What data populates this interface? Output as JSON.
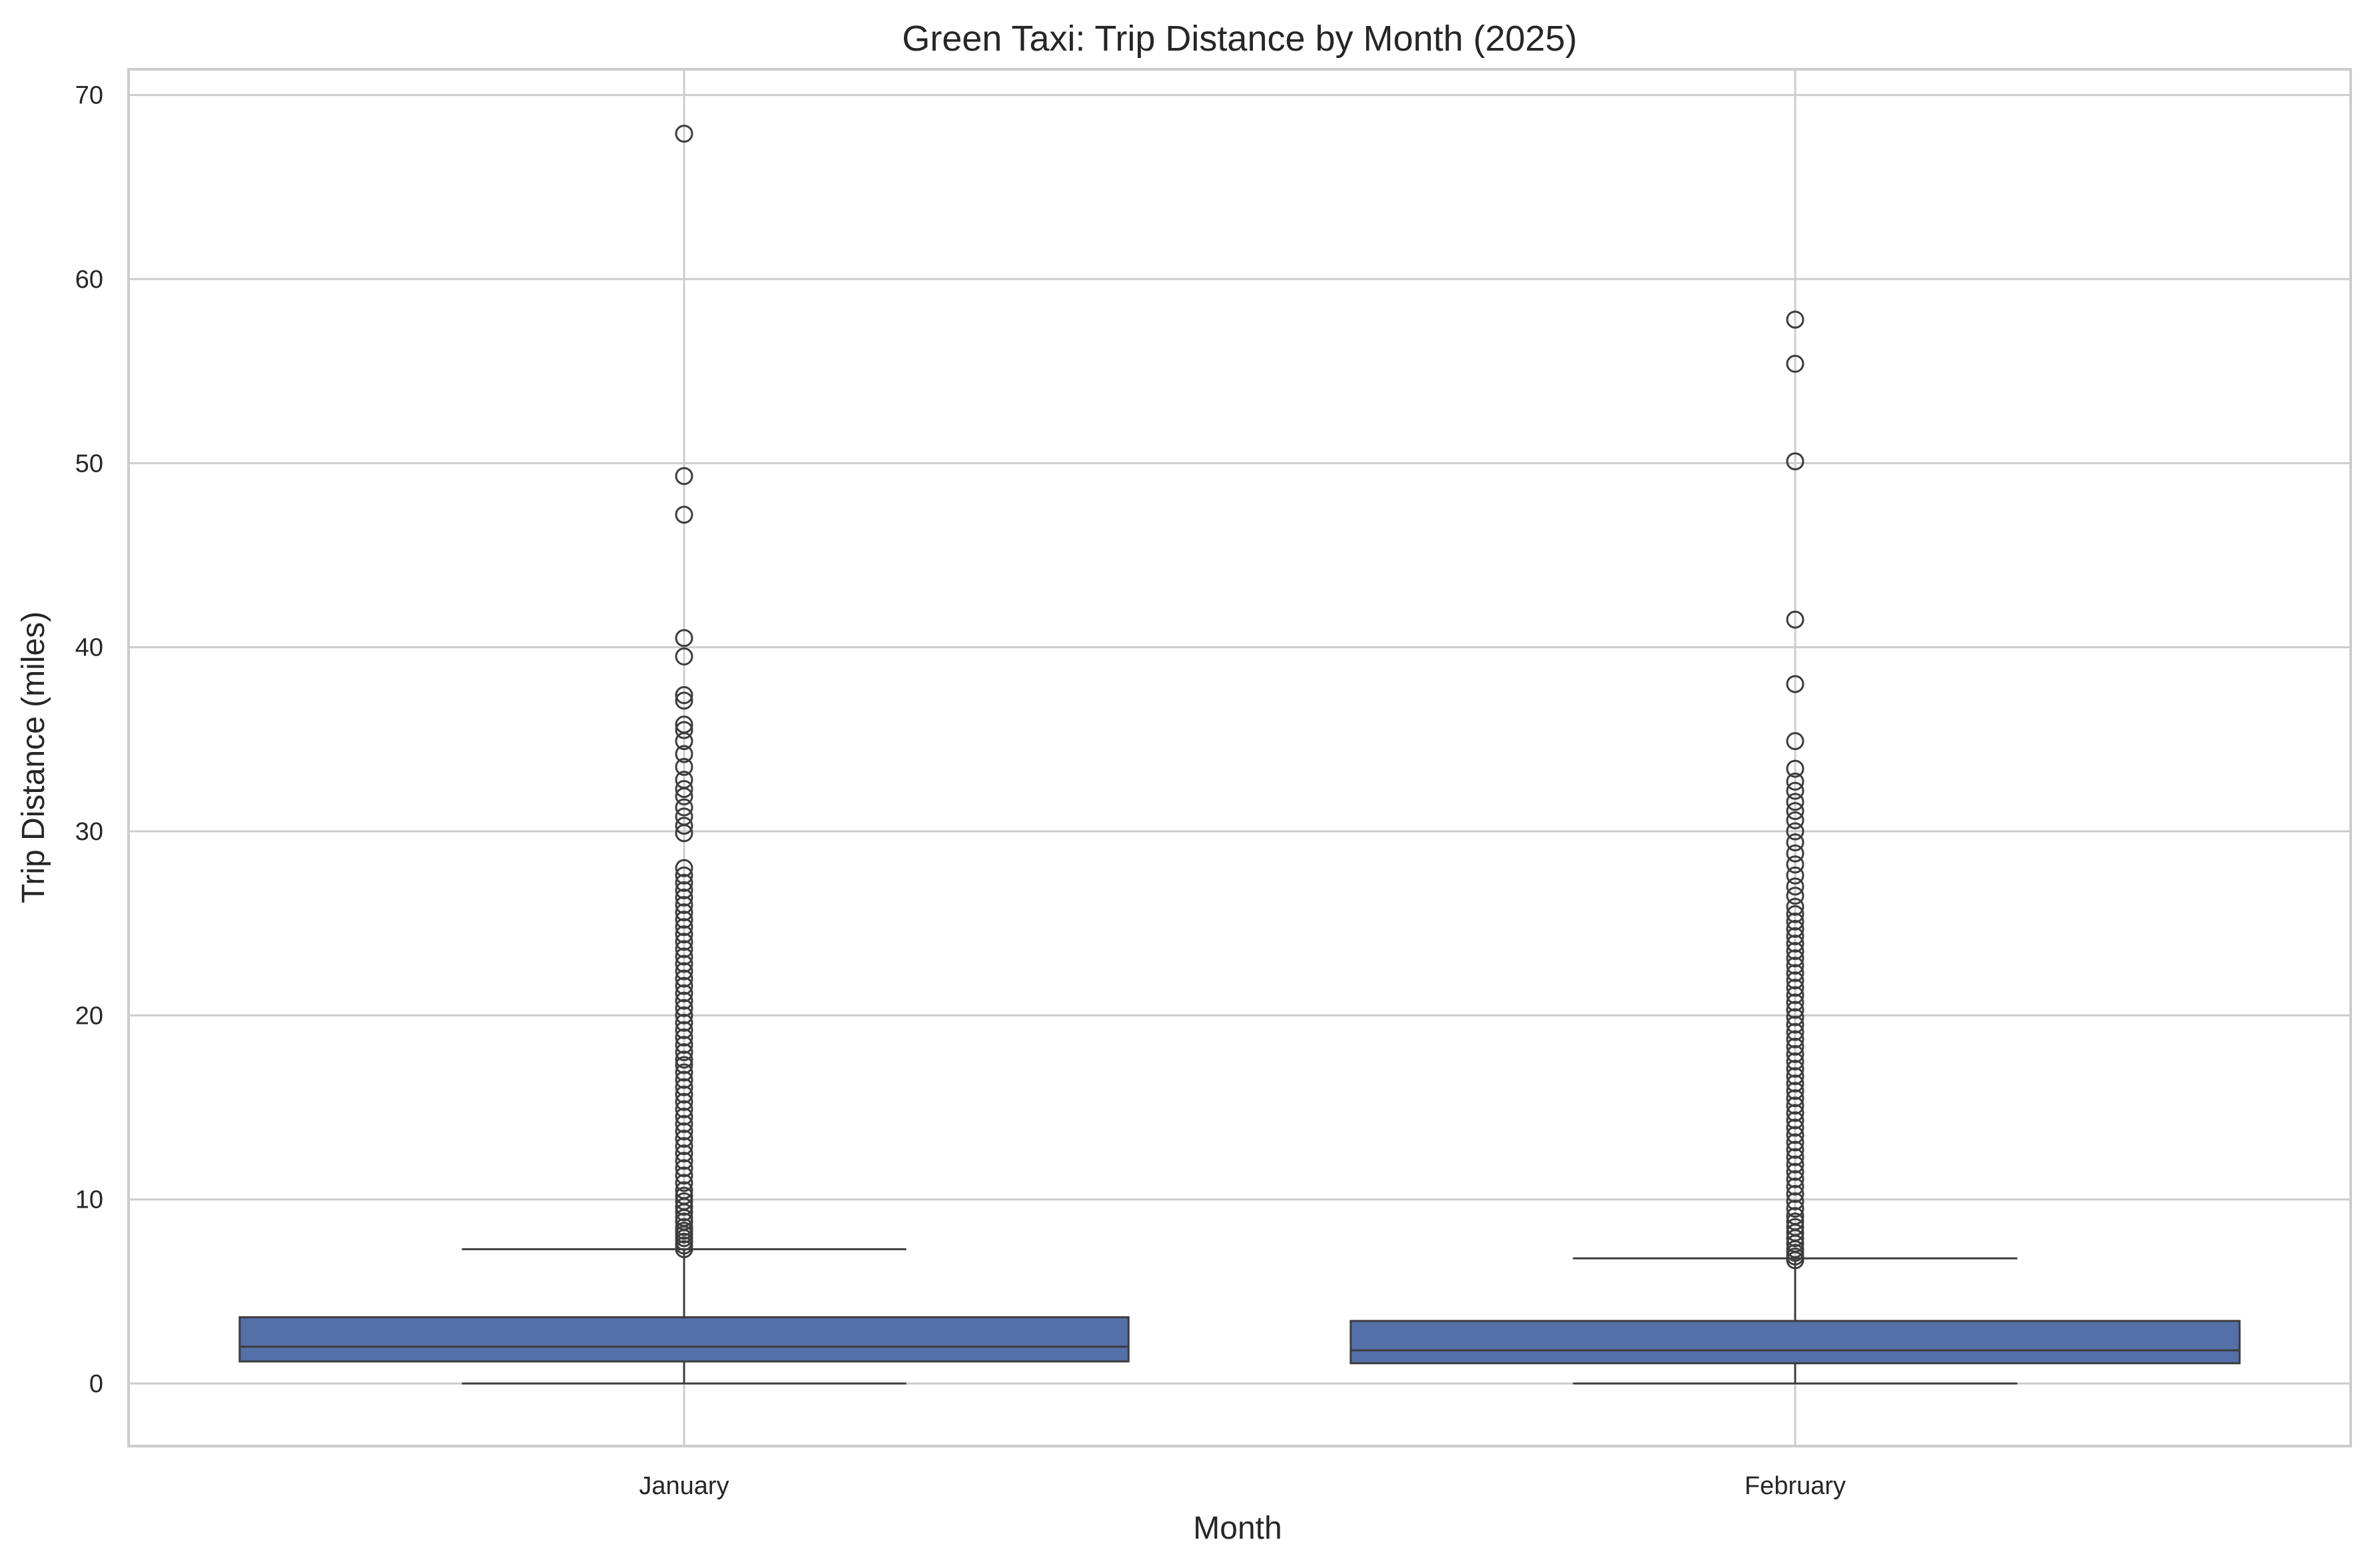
{
  "chart_data": {
    "type": "box",
    "title": "Green Taxi: Trip Distance by Month (2025)",
    "xlabel": "Month",
    "ylabel": "Trip Distance (miles)",
    "ylim": [
      -3.4,
      71.4
    ],
    "yticks": [
      0,
      10,
      20,
      30,
      40,
      50,
      60,
      70
    ],
    "grid": true,
    "colors": {
      "box_fill": "#5470a8",
      "line": "#3d3d3d",
      "grid": "#cccccc",
      "spine": "#cccccc"
    },
    "categories": [
      "January",
      "February"
    ],
    "series": [
      {
        "category": "January",
        "min": 0,
        "q1": 1.2,
        "median": 2.0,
        "q3": 3.6,
        "max": 7.3,
        "outliers": [
          7.3,
          7.5,
          7.7,
          7.9,
          8.1,
          8.3,
          8.5,
          8.8,
          9.0,
          9.3,
          9.6,
          9.9,
          10.2,
          10.5,
          10.9,
          11.3,
          11.7,
          12.1,
          12.5,
          12.9,
          13.3,
          13.7,
          14.1,
          14.5,
          14.9,
          15.3,
          15.7,
          16.1,
          16.5,
          16.9,
          17.3,
          17.6,
          18.0,
          18.4,
          18.8,
          19.2,
          19.6,
          20.0,
          20.4,
          20.8,
          21.2,
          21.6,
          22.0,
          22.4,
          22.8,
          23.2,
          23.6,
          24.0,
          24.4,
          24.8,
          25.2,
          25.6,
          26.0,
          26.4,
          26.8,
          27.2,
          27.6,
          28.0,
          29.9,
          30.3,
          30.8,
          31.3,
          31.9,
          32.3,
          32.8,
          33.5,
          34.2,
          34.9,
          35.5,
          35.8,
          37.1,
          37.4,
          39.5,
          40.5,
          47.2,
          49.3,
          67.9
        ]
      },
      {
        "category": "February",
        "min": 0,
        "q1": 1.1,
        "median": 1.8,
        "q3": 3.4,
        "max": 6.8,
        "outliers": [
          6.7,
          6.9,
          7.1,
          7.3,
          7.6,
          7.9,
          8.2,
          8.5,
          8.8,
          9.1,
          9.5,
          9.9,
          10.3,
          10.7,
          11.1,
          11.5,
          11.9,
          12.3,
          12.7,
          13.1,
          13.5,
          13.9,
          14.3,
          14.7,
          15.1,
          15.5,
          15.9,
          16.3,
          16.7,
          17.1,
          17.5,
          17.9,
          18.3,
          18.7,
          19.1,
          19.5,
          19.9,
          20.3,
          20.7,
          21.1,
          21.5,
          21.9,
          22.3,
          22.7,
          23.1,
          23.5,
          23.9,
          24.3,
          24.7,
          25.1,
          25.5,
          25.9,
          26.5,
          27.0,
          27.6,
          28.2,
          28.8,
          29.4,
          30.0,
          30.6,
          31.1,
          31.6,
          32.2,
          32.7,
          33.4,
          34.9,
          38.0,
          41.5,
          50.1,
          55.4,
          57.8
        ]
      }
    ]
  }
}
